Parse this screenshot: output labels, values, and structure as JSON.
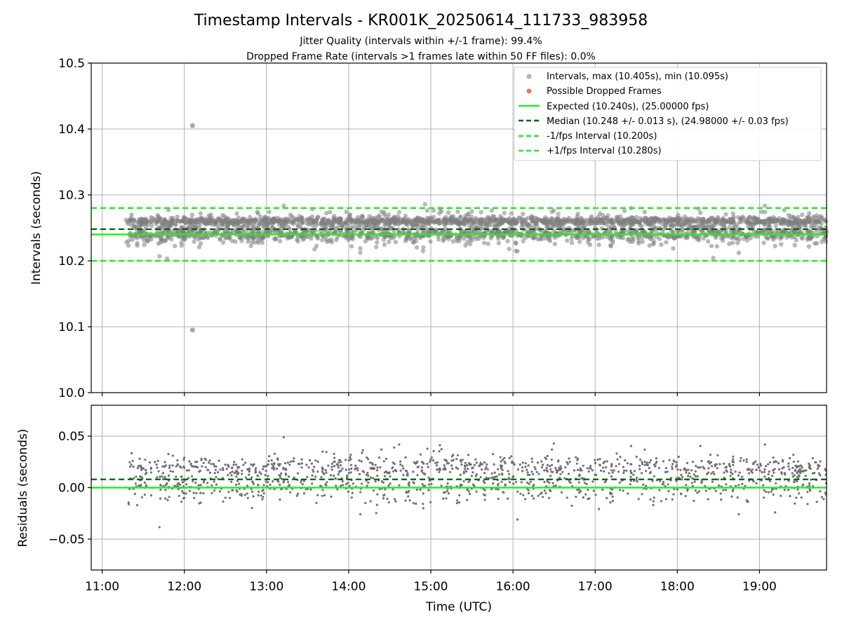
{
  "figure": {
    "title": "Timestamp Intervals - KR001K_20250614_111733_983958",
    "subtitle_1": "Jitter Quality (intervals within +/-1 frame): 99.4%",
    "subtitle_2": "Dropped Frame Rate (intervals >1 frames late within 50 FF files): 0.0%"
  },
  "colors": {
    "points": "#808080",
    "dropped": "#ff4444",
    "expected": "#22ee22",
    "median": "#006400",
    "interval_bounds": "#22ee22",
    "grid": "#b0b0b0"
  },
  "chart_data": [
    {
      "type": "scatter",
      "ylabel": "Intervals (seconds)",
      "xlabel": "",
      "xlim": [
        "10:52",
        "19:49"
      ],
      "ylim": [
        10.0,
        10.5
      ],
      "grid": true,
      "legend_position": "top-right",
      "x_ticks": [
        "11:00",
        "12:00",
        "13:00",
        "14:00",
        "15:00",
        "16:00",
        "17:00",
        "18:00",
        "19:00"
      ],
      "y_ticks": [
        "10.0",
        "10.1",
        "10.2",
        "10.3",
        "10.4",
        "10.5"
      ],
      "series": [
        {
          "name": "Intervals, max (10.405s), min (10.095s)",
          "kind": "scatter",
          "x_range": [
            "11:17",
            "19:49"
          ],
          "center": 10.248,
          "spread": 0.013,
          "min": 10.095,
          "max": 10.405,
          "outliers": [
            {
              "x": "12:06",
              "y": 10.405
            },
            {
              "x": "12:06",
              "y": 10.095
            }
          ]
        },
        {
          "name": "Possible Dropped Frames",
          "kind": "scatter",
          "points": []
        },
        {
          "name": "Expected (10.240s), (25.00000 fps)",
          "kind": "hline",
          "y": 10.24
        },
        {
          "name": "Median (10.248 +/- 0.013 s), (24.98000 +/- 0.03 fps)",
          "kind": "hline_dashed",
          "y": 10.248
        },
        {
          "name": "-1/fps Interval (10.200s)",
          "kind": "hline_dashed",
          "y": 10.2
        },
        {
          "name": "+1/fps Interval (10.280s)",
          "kind": "hline_dashed",
          "y": 10.28
        }
      ]
    },
    {
      "type": "scatter",
      "ylabel": "Residuals (seconds)",
      "xlabel": "Time (UTC)",
      "xlim": [
        "10:52",
        "19:49"
      ],
      "ylim": [
        -0.08,
        0.08
      ],
      "grid": true,
      "x_ticks": [
        "11:00",
        "12:00",
        "13:00",
        "14:00",
        "15:00",
        "16:00",
        "17:00",
        "18:00",
        "19:00"
      ],
      "y_ticks": [
        "0.05",
        "0.00",
        "−0.05"
      ],
      "y_tick_values": [
        0.05,
        0.0,
        -0.05
      ],
      "series": [
        {
          "kind": "scatter",
          "x_range": [
            "11:17",
            "19:49"
          ],
          "center": 0.008,
          "spread": 0.013
        },
        {
          "kind": "hline",
          "y": 0.0
        },
        {
          "kind": "hline_dashed",
          "y": 0.008
        }
      ]
    }
  ]
}
